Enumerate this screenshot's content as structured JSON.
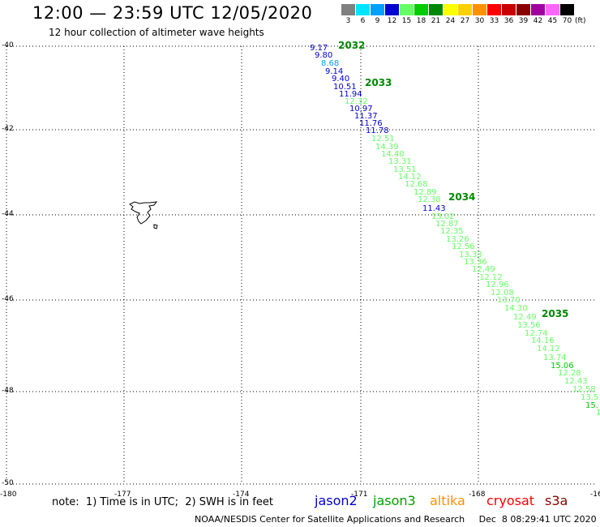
{
  "header": {
    "title": "12:00 — 23:59 UTC 12/05/2020",
    "subtitle": "12 hour collection of altimeter wave heights"
  },
  "legend": {
    "unit": "(ft)",
    "bins": [
      {
        "label": "3",
        "color": "#808080"
      },
      {
        "label": "6",
        "color": "#00e5ff"
      },
      {
        "label": "9",
        "color": "#00a0ff"
      },
      {
        "label": "12",
        "color": "#0000d0"
      },
      {
        "label": "15",
        "color": "#66ff66"
      },
      {
        "label": "18",
        "color": "#00cc00"
      },
      {
        "label": "21",
        "color": "#008800"
      },
      {
        "label": "24",
        "color": "#ffff00"
      },
      {
        "label": "27",
        "color": "#ffd000"
      },
      {
        "label": "30",
        "color": "#ff9000"
      },
      {
        "label": "33",
        "color": "#ff0000"
      },
      {
        "label": "36",
        "color": "#c80000"
      },
      {
        "label": "39",
        "color": "#8a0000"
      },
      {
        "label": "42",
        "color": "#a000a0"
      },
      {
        "label": "45",
        "color": "#ff66ff"
      },
      {
        "label": "70",
        "color": "#000000"
      }
    ]
  },
  "axes": {
    "lat_labels": [
      "-40",
      "-42",
      "-44",
      "-46",
      "-48",
      "-50"
    ],
    "lon_labels": [
      "-180",
      "-177",
      "-174",
      "-171",
      "-168",
      "-16"
    ]
  },
  "track": {
    "time_labels": [
      "2032",
      "2033",
      "2034",
      "2035"
    ],
    "readings": [
      {
        "text": "9.17",
        "color": "#0000d0"
      },
      {
        "text": "9.80",
        "color": "#0000d0"
      },
      {
        "text": "8.68",
        "color": "#00a0ff"
      },
      {
        "text": "9.14",
        "color": "#0000d0"
      },
      {
        "text": "9.40",
        "color": "#0000d0"
      },
      {
        "text": "10.51",
        "color": "#0000d0"
      },
      {
        "text": "11.94",
        "color": "#0000d0"
      },
      {
        "text": "12.32",
        "color": "#66ff66"
      },
      {
        "text": "10.97",
        "color": "#0000d0"
      },
      {
        "text": "11.37",
        "color": "#0000d0"
      },
      {
        "text": "11.76",
        "color": "#0000d0"
      },
      {
        "text": "11.78",
        "color": "#0000d0"
      },
      {
        "text": "12.51",
        "color": "#66ff66"
      },
      {
        "text": "14.39",
        "color": "#66ff66"
      },
      {
        "text": "14.40",
        "color": "#66ff66"
      },
      {
        "text": "13.31",
        "color": "#66ff66"
      },
      {
        "text": "13.51",
        "color": "#66ff66"
      },
      {
        "text": "14.12",
        "color": "#66ff66"
      },
      {
        "text": "12.68",
        "color": "#66ff66"
      },
      {
        "text": "12.89",
        "color": "#66ff66"
      },
      {
        "text": "12.38",
        "color": "#66ff66"
      },
      {
        "text": "11.43",
        "color": "#0000d0"
      },
      {
        "text": "13.02",
        "color": "#66ff66"
      },
      {
        "text": "12.87",
        "color": "#66ff66"
      },
      {
        "text": "12.35",
        "color": "#66ff66"
      },
      {
        "text": "13.26",
        "color": "#66ff66"
      },
      {
        "text": "12.56",
        "color": "#66ff66"
      },
      {
        "text": "13.33",
        "color": "#66ff66"
      },
      {
        "text": "13.36",
        "color": "#66ff66"
      },
      {
        "text": "12.49",
        "color": "#66ff66"
      },
      {
        "text": "12.12",
        "color": "#66ff66"
      },
      {
        "text": "12.96",
        "color": "#66ff66"
      },
      {
        "text": "12.08",
        "color": "#66ff66"
      },
      {
        "text": "13.70",
        "color": "#66ff66"
      },
      {
        "text": "14.30",
        "color": "#66ff66"
      },
      {
        "text": "12.49",
        "color": "#66ff66"
      },
      {
        "text": "13.56",
        "color": "#66ff66"
      },
      {
        "text": "12.74",
        "color": "#66ff66"
      },
      {
        "text": "14.16",
        "color": "#66ff66"
      },
      {
        "text": "14.12",
        "color": "#66ff66"
      },
      {
        "text": "13.74",
        "color": "#66ff66"
      },
      {
        "text": "15.06",
        "color": "#00cc00"
      },
      {
        "text": "12.28",
        "color": "#66ff66"
      },
      {
        "text": "12.43",
        "color": "#66ff66"
      },
      {
        "text": "12.58",
        "color": "#66ff66"
      },
      {
        "text": "13.51",
        "color": "#66ff66"
      },
      {
        "text": "15.",
        "color": "#00cc00"
      },
      {
        "text": "1",
        "color": "#66ff66"
      }
    ]
  },
  "footer": {
    "note": "note:  1) Time is in UTC;  2) SWH is in feet",
    "satellites": [
      {
        "name": "jason2",
        "color": "#0000d0"
      },
      {
        "name": "jason3",
        "color": "#00a000"
      },
      {
        "name": "altika",
        "color": "#ff9000"
      },
      {
        "name": "cryosat",
        "color": "#ff0000"
      },
      {
        "name": "s3a",
        "color": "#8a0000"
      }
    ],
    "credit": "NOAA/NESDIS Center for Satellite Applications and Research     Dec  8 08:29:41 UTC 2020"
  }
}
